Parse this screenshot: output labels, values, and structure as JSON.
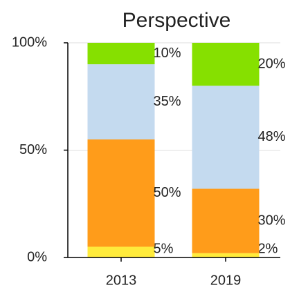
{
  "chart_data": {
    "type": "stacked_bar",
    "title": "Perspective",
    "categories": [
      "2013",
      "2019"
    ],
    "series": [
      {
        "color": "#ffeb3b",
        "values": [
          5,
          2
        ],
        "value_labels": [
          "5%",
          "2%"
        ]
      },
      {
        "color": "#ff9c1a",
        "values": [
          50,
          30
        ],
        "value_labels": [
          "50%",
          "30%"
        ]
      },
      {
        "color": "#c4daef",
        "values": [
          35,
          48
        ],
        "value_labels": [
          "35%",
          "48%"
        ]
      },
      {
        "color": "#86e000",
        "values": [
          10,
          20
        ],
        "value_labels": [
          "10%",
          "20%"
        ]
      }
    ],
    "ylim": [
      0,
      100
    ],
    "yticks": [
      {
        "value": 0,
        "label": "0%"
      },
      {
        "value": 50,
        "label": "50%"
      },
      {
        "value": 100,
        "label": "100%"
      }
    ],
    "grid": true
  }
}
